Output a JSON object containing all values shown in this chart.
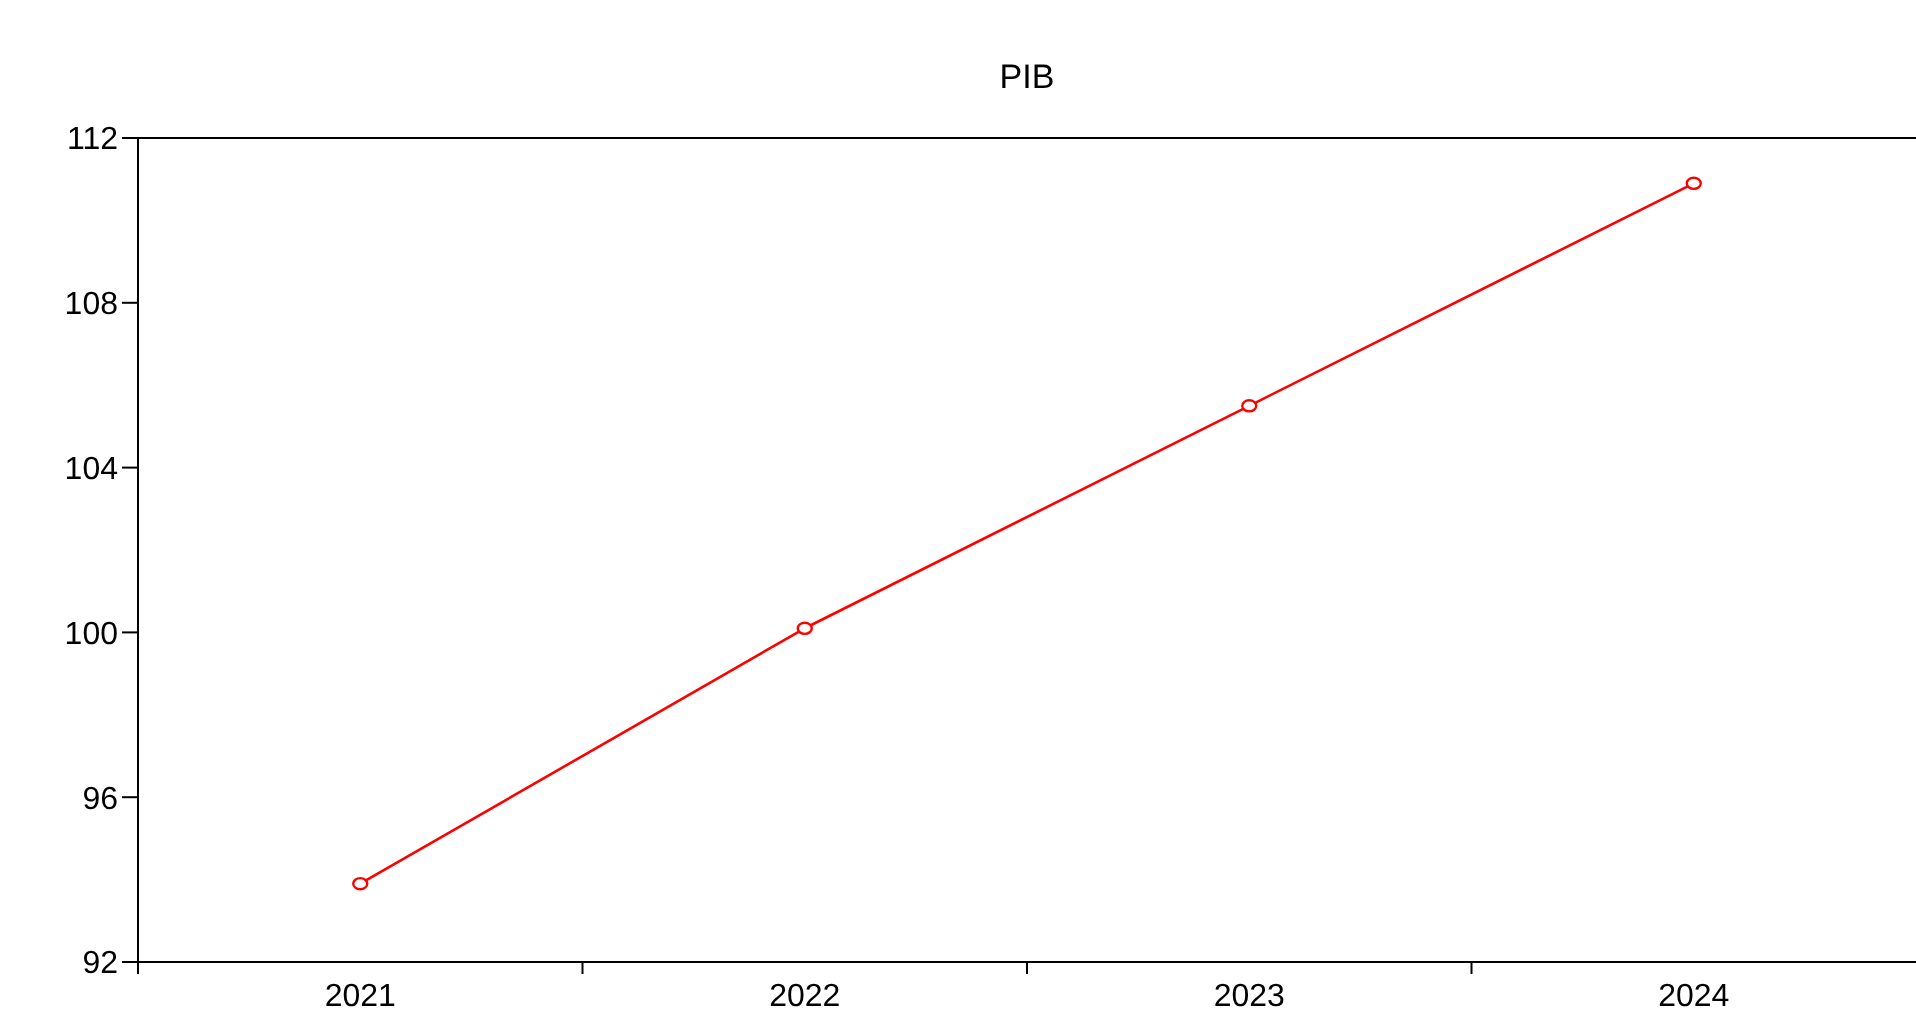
{
  "chart_data": {
    "type": "line",
    "title": "PIB",
    "categories": [
      "2021",
      "2022",
      "2023",
      "2024"
    ],
    "series": [
      {
        "color": "#ff0000",
        "values": [
          93.9,
          100.1,
          105.5,
          110.9
        ]
      }
    ],
    "ylim": [
      92,
      112
    ],
    "yticks": [
      92,
      96,
      100,
      104,
      108,
      112
    ],
    "grid": false,
    "legend": false,
    "marker": "circle",
    "line_style": "solid"
  }
}
